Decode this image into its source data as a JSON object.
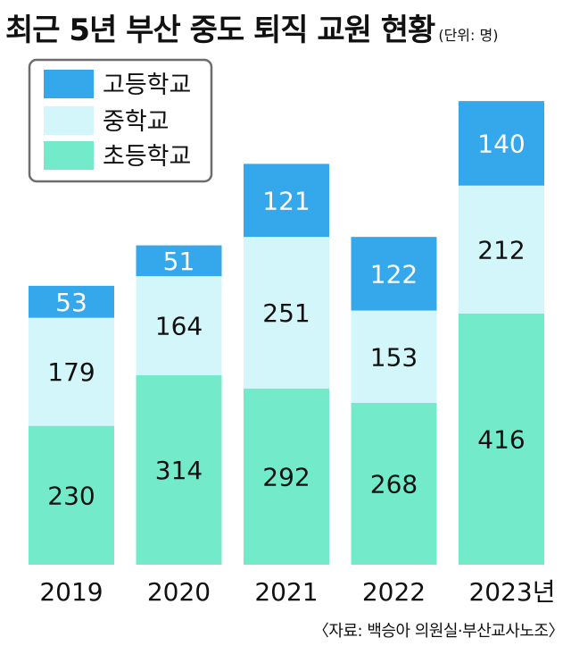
{
  "title": "최근 5년 부산 중도 퇴직 교원 현황",
  "unit_label": "(단위: 명)",
  "source": "〈자료: 백승아 의원실·부산교사노조〉",
  "colors": {
    "high_school": "#35a8ec",
    "middle_school": "#d3f6fb",
    "elementary_school": "#73ebcb"
  },
  "chart_data": {
    "type": "bar",
    "stacked": true,
    "categories": [
      "2019",
      "2020",
      "2021",
      "2022",
      "2023년"
    ],
    "series": [
      {
        "name": "초등학교",
        "values": [
          230,
          314,
          292,
          268,
          416
        ],
        "color": "#73ebcb"
      },
      {
        "name": "중학교",
        "values": [
          179,
          164,
          251,
          153,
          212
        ],
        "color": "#d3f6fb"
      },
      {
        "name": "고등학교",
        "values": [
          53,
          51,
          121,
          122,
          140
        ],
        "color": "#35a8ec"
      }
    ],
    "legend_order": [
      "고등학교",
      "중학교",
      "초등학교"
    ],
    "legend_position": "top-left",
    "grid": false,
    "ylim": [
      0,
      820
    ]
  }
}
